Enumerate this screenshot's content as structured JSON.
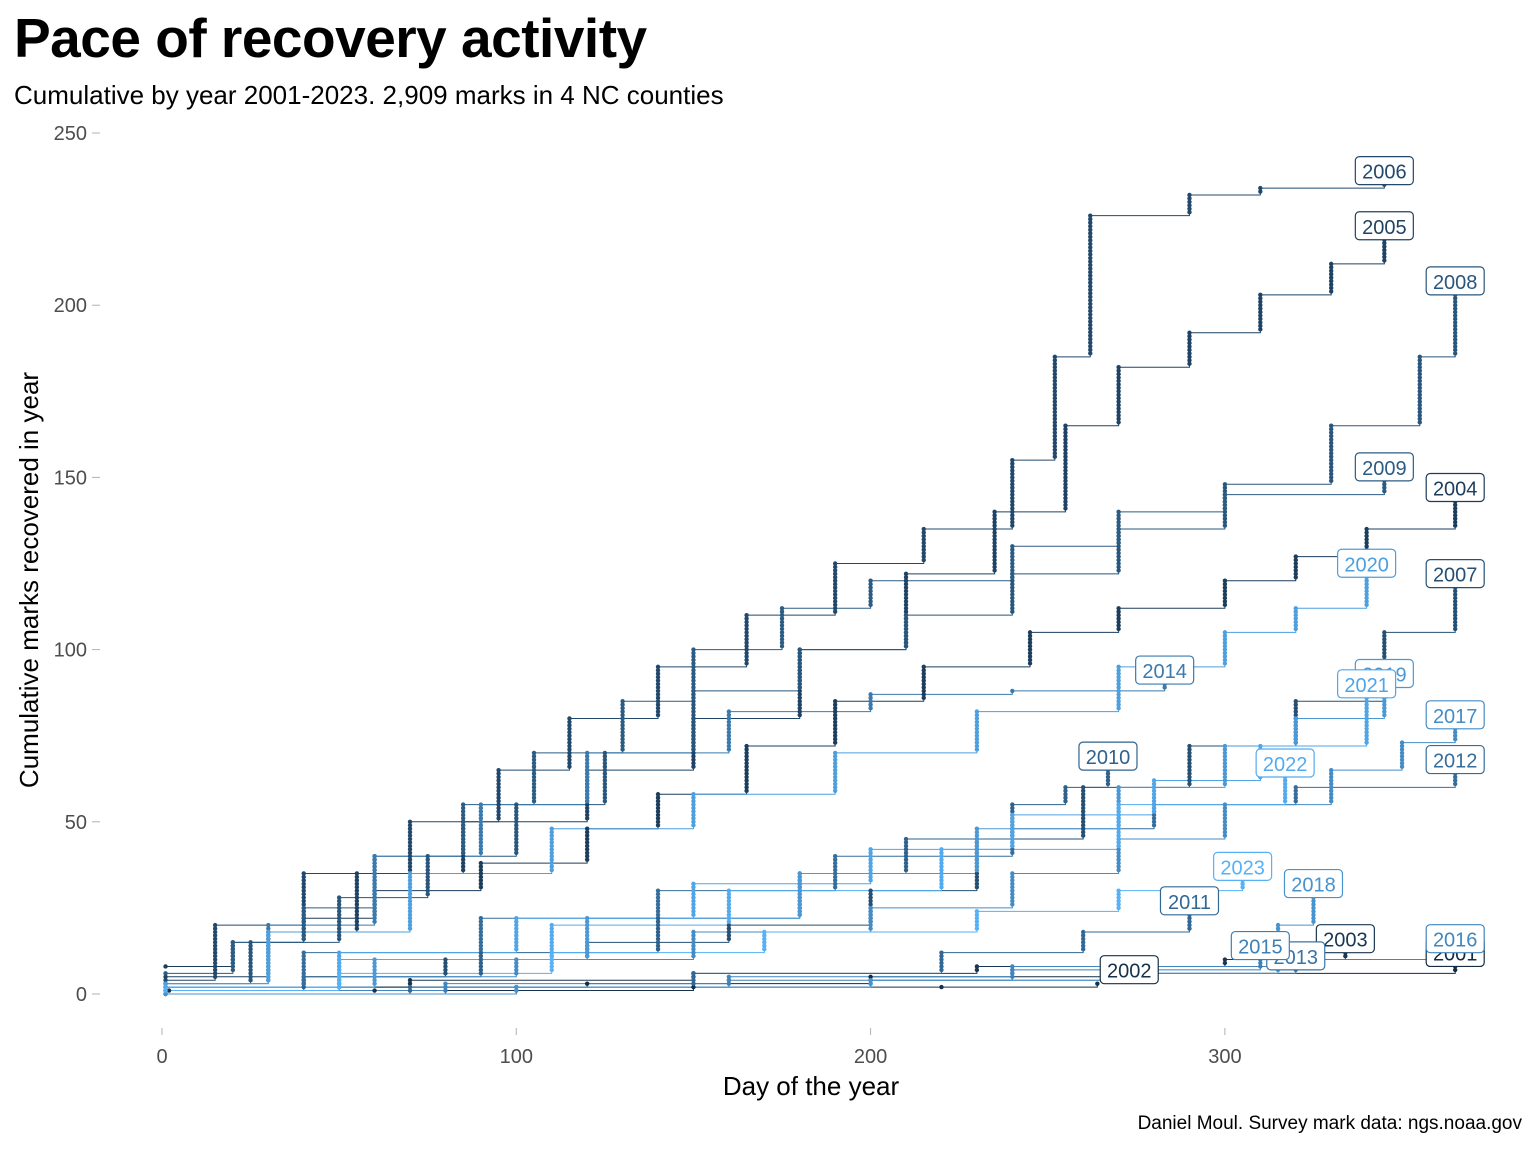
{
  "chart_data": {
    "type": "line",
    "title": "Pace of recovery activity",
    "subtitle": "Cumulative by year 2001-2023. 2,909 marks in 4 NC counties",
    "xlabel": "Day of the year",
    "ylabel": "Cumulative marks recovered in year",
    "caption": "Daniel Moul. Survey mark data: ngs.noaa.gov",
    "xlim": [
      -10,
      372
    ],
    "ylim": [
      -12,
      252
    ],
    "xticks": [
      0,
      100,
      200,
      300
    ],
    "yticks": [
      0,
      50,
      100,
      150,
      200,
      250
    ],
    "grid": false,
    "legend": "none (direct year labels at line ends)",
    "colors": {
      "dark": "#132b43",
      "light": "#56b1f7"
    },
    "series": [
      {
        "name": "2001",
        "label_at": [
          365,
          8
        ],
        "x": [
          1,
          50,
          120,
          200,
          280,
          365
        ],
        "y": [
          1,
          2,
          3,
          5,
          6,
          8
        ]
      },
      {
        "name": "2002",
        "label_at": [
          273,
          3
        ],
        "x": [
          2,
          60,
          150,
          220,
          264
        ],
        "y": [
          1,
          1,
          2,
          2,
          3
        ]
      },
      {
        "name": "2003",
        "label_at": [
          334,
          12
        ],
        "x": [
          1,
          70,
          150,
          230,
          300,
          334
        ],
        "y": [
          2,
          4,
          6,
          8,
          10,
          12
        ]
      },
      {
        "name": "2004",
        "label_at": [
          365,
          143
        ],
        "x": [
          1,
          20,
          40,
          60,
          90,
          120,
          140,
          165,
          190,
          215,
          245,
          270,
          300,
          320,
          340,
          365
        ],
        "y": [
          8,
          15,
          22,
          30,
          38,
          48,
          58,
          72,
          85,
          95,
          105,
          112,
          120,
          127,
          135,
          143
        ]
      },
      {
        "name": "2005",
        "label_at": [
          345,
          219
        ],
        "x": [
          1,
          30,
          55,
          85,
          120,
          150,
          180,
          210,
          235,
          255,
          270,
          290,
          310,
          330,
          345
        ],
        "y": [
          5,
          18,
          35,
          50,
          65,
          80,
          100,
          122,
          140,
          165,
          182,
          192,
          203,
          212,
          219
        ]
      },
      {
        "name": "2006",
        "label_at": [
          345,
          235
        ],
        "x": [
          1,
          15,
          40,
          70,
          95,
          115,
          140,
          165,
          190,
          215,
          240,
          252,
          262,
          290,
          310,
          345
        ],
        "y": [
          4,
          20,
          35,
          50,
          65,
          80,
          95,
          110,
          125,
          135,
          155,
          185,
          226,
          232,
          234,
          235
        ]
      },
      {
        "name": "2007",
        "label_at": [
          365,
          118
        ],
        "x": [
          1,
          40,
          80,
          120,
          160,
          200,
          230,
          260,
          290,
          320,
          345,
          365
        ],
        "y": [
          2,
          5,
          10,
          15,
          20,
          30,
          45,
          60,
          72,
          85,
          105,
          118
        ]
      },
      {
        "name": "2008",
        "label_at": [
          365,
          203
        ],
        "x": [
          1,
          25,
          50,
          75,
          100,
          125,
          150,
          180,
          210,
          240,
          270,
          300,
          330,
          355,
          365
        ],
        "y": [
          3,
          15,
          28,
          40,
          55,
          70,
          88,
          100,
          110,
          122,
          135,
          148,
          165,
          185,
          203
        ]
      },
      {
        "name": "2009",
        "label_at": [
          345,
          149
        ],
        "x": [
          1,
          20,
          40,
          60,
          85,
          105,
          130,
          150,
          175,
          200,
          240,
          270,
          300,
          345
        ],
        "y": [
          6,
          15,
          25,
          40,
          55,
          70,
          85,
          100,
          112,
          120,
          130,
          140,
          145,
          149
        ]
      },
      {
        "name": "2010",
        "label_at": [
          267,
          65
        ],
        "x": [
          1,
          40,
          90,
          140,
          180,
          210,
          240,
          255,
          267
        ],
        "y": [
          1,
          5,
          12,
          22,
          35,
          45,
          55,
          60,
          65
        ]
      },
      {
        "name": "2011",
        "label_at": [
          290,
          23
        ],
        "x": [
          1,
          70,
          150,
          220,
          260,
          290
        ],
        "y": [
          0,
          2,
          6,
          12,
          18,
          23
        ]
      },
      {
        "name": "2012",
        "label_at": [
          365,
          64
        ],
        "x": [
          1,
          40,
          90,
          140,
          190,
          240,
          280,
          320,
          365
        ],
        "y": [
          2,
          12,
          22,
          30,
          40,
          48,
          55,
          60,
          64
        ]
      },
      {
        "name": "2013",
        "label_at": [
          320,
          7
        ],
        "x": [
          1,
          100,
          200,
          280,
          320
        ],
        "y": [
          0,
          2,
          4,
          6,
          7
        ]
      },
      {
        "name": "2014",
        "label_at": [
          283,
          90
        ],
        "x": [
          1,
          30,
          60,
          90,
          120,
          160,
          200,
          240,
          283
        ],
        "y": [
          3,
          20,
          40,
          55,
          70,
          82,
          87,
          88,
          90
        ]
      },
      {
        "name": "2015",
        "label_at": [
          310,
          10
        ],
        "x": [
          1,
          80,
          160,
          240,
          310
        ],
        "y": [
          0,
          2,
          4,
          7,
          10
        ]
      },
      {
        "name": "2016",
        "label_at": [
          365,
          12
        ],
        "x": [
          1,
          80,
          160,
          240,
          320,
          365
        ],
        "y": [
          1,
          3,
          5,
          8,
          10,
          12
        ]
      },
      {
        "name": "2017",
        "label_at": [
          365,
          77
        ],
        "x": [
          1,
          50,
          100,
          150,
          200,
          240,
          270,
          300,
          330,
          350,
          365
        ],
        "y": [
          1,
          5,
          10,
          18,
          25,
          35,
          45,
          55,
          65,
          73,
          77
        ]
      },
      {
        "name": "2018",
        "label_at": [
          325,
          28
        ],
        "x": [
          1,
          100,
          200,
          280,
          315,
          325
        ],
        "y": [
          0,
          2,
          4,
          6,
          20,
          28
        ]
      },
      {
        "name": "2019",
        "label_at": [
          345,
          89
        ],
        "x": [
          1,
          60,
          120,
          180,
          230,
          270,
          300,
          320,
          345
        ],
        "y": [
          2,
          10,
          22,
          35,
          48,
          60,
          72,
          80,
          89
        ]
      },
      {
        "name": "2020",
        "label_at": [
          340,
          121
        ],
        "x": [
          1,
          30,
          70,
          110,
          150,
          190,
          230,
          270,
          300,
          320,
          340
        ],
        "y": [
          3,
          18,
          35,
          48,
          58,
          70,
          82,
          95,
          105,
          112,
          121
        ]
      },
      {
        "name": "2021",
        "label_at": [
          340,
          86
        ],
        "x": [
          1,
          50,
          100,
          150,
          200,
          240,
          280,
          310,
          340
        ],
        "y": [
          2,
          12,
          22,
          32,
          42,
          52,
          62,
          72,
          86
        ]
      },
      {
        "name": "2022",
        "label_at": [
          317,
          63
        ],
        "x": [
          1,
          50,
          110,
          160,
          220,
          270,
          317
        ],
        "y": [
          2,
          10,
          20,
          30,
          42,
          55,
          63
        ]
      },
      {
        "name": "2023",
        "label_at": [
          305,
          33
        ],
        "x": [
          1,
          50,
          110,
          170,
          230,
          270,
          305
        ],
        "y": [
          1,
          6,
          12,
          18,
          24,
          30,
          33
        ]
      }
    ]
  }
}
